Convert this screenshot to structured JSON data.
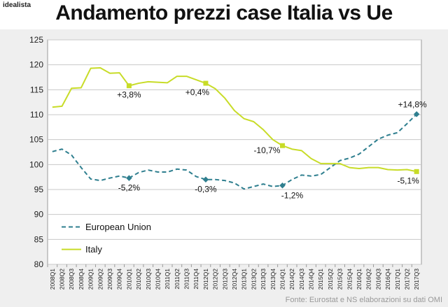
{
  "header": {
    "brand": "idealista",
    "title": "Andamento prezzi case Italia vs Ue"
  },
  "footer": {
    "source": "Fonte: Eurostat e NS elaborazioni su dati OMI"
  },
  "chart_data": {
    "type": "line",
    "title": "Andamento prezzi case Italia vs Ue",
    "xlabel": "",
    "ylabel": "",
    "ylim": [
      80,
      125
    ],
    "yticks": [
      80,
      85,
      90,
      95,
      100,
      105,
      110,
      115,
      120,
      125
    ],
    "grid": true,
    "legend_position": "bottom-left",
    "categories": [
      "2008Q1",
      "2008Q2",
      "2008Q3",
      "2008Q4",
      "2009Q1",
      "2009Q2",
      "2009Q3",
      "2009Q4",
      "2010Q1",
      "2010Q2",
      "2010Q3",
      "2010Q4",
      "2011Q1",
      "2011Q2",
      "2011Q3",
      "2011Q4",
      "2012Q1",
      "2012Q2",
      "2012Q3",
      "2012Q4",
      "2013Q1",
      "2013Q2",
      "2013Q3",
      "2013Q4",
      "2014Q1",
      "2014Q2",
      "2014Q3",
      "2014Q4",
      "2015Q1",
      "2015Q2",
      "2015Q3",
      "2015Q4",
      "2016Q1",
      "2016Q2",
      "2016Q3",
      "2016Q4",
      "2017Q1",
      "2017Q2",
      "2017Q3"
    ],
    "series": [
      {
        "name": "European Union",
        "color": "#2f7f8f",
        "dash": true,
        "marker": "diamond",
        "values": [
          102.6,
          103.1,
          101.9,
          99.4,
          97.1,
          96.8,
          97.3,
          97.7,
          97.3,
          98.4,
          98.9,
          98.5,
          98.5,
          99.1,
          98.9,
          97.6,
          97.0,
          97.0,
          96.8,
          96.3,
          95.1,
          95.6,
          96.1,
          95.6,
          95.8,
          97.0,
          97.9,
          97.7,
          98.0,
          99.4,
          100.8,
          101.3,
          102.1,
          103.6,
          105.1,
          105.9,
          106.4,
          108.2,
          110.1
        ],
        "marked_points": [
          {
            "index": 8,
            "label": "-5,2%"
          },
          {
            "index": 16,
            "label": "-0,3%"
          },
          {
            "index": 24,
            "label": "-1,2%"
          },
          {
            "index": 38,
            "label": "+14,8%"
          }
        ]
      },
      {
        "name": "Italy",
        "color": "#c8dc28",
        "dash": false,
        "marker": "square",
        "values": [
          111.5,
          111.7,
          115.3,
          115.4,
          119.3,
          119.4,
          118.3,
          118.4,
          115.8,
          116.3,
          116.6,
          116.5,
          116.4,
          117.7,
          117.7,
          117.0,
          116.3,
          115.2,
          113.3,
          110.8,
          109.2,
          108.6,
          107.0,
          105.0,
          103.8,
          103.1,
          102.8,
          101.2,
          100.2,
          100.2,
          100.2,
          99.4,
          99.2,
          99.4,
          99.4,
          99.0,
          98.9,
          99.0,
          98.6
        ],
        "marked_points": [
          {
            "index": 8,
            "label": "+3,8%"
          },
          {
            "index": 16,
            "label": "+0,4%"
          },
          {
            "index": 24,
            "label": "-10,7%"
          },
          {
            "index": 38,
            "label": "-5,1%"
          }
        ]
      }
    ]
  }
}
